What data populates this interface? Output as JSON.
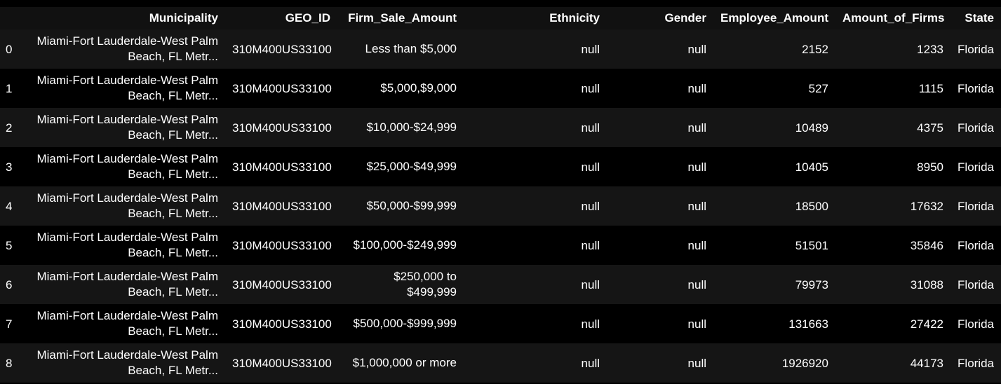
{
  "table": {
    "index_header": "",
    "columns": [
      "Municipality",
      "GEO_ID",
      "Firm_Sale_Amount",
      "Ethnicity",
      "Gender",
      "Employee_Amount",
      "Amount_of_Firms",
      "State"
    ],
    "rows": [
      {
        "index": "0",
        "municipality": "Miami-Fort Lauderdale-West Palm Beach, FL Metr...",
        "geo_id": "310M400US33100",
        "firm_sale_amount": "Less than $5,000",
        "ethnicity": "null",
        "gender": "null",
        "employee_amount": "2152",
        "amount_of_firms": "1233",
        "state": "Florida"
      },
      {
        "index": "1",
        "municipality": "Miami-Fort Lauderdale-West Palm Beach, FL Metr...",
        "geo_id": "310M400US33100",
        "firm_sale_amount": "$5,000,$9,000",
        "ethnicity": "null",
        "gender": "null",
        "employee_amount": "527",
        "amount_of_firms": "1115",
        "state": "Florida"
      },
      {
        "index": "2",
        "municipality": "Miami-Fort Lauderdale-West Palm Beach, FL Metr...",
        "geo_id": "310M400US33100",
        "firm_sale_amount": "$10,000-$24,999",
        "ethnicity": "null",
        "gender": "null",
        "employee_amount": "10489",
        "amount_of_firms": "4375",
        "state": "Florida"
      },
      {
        "index": "3",
        "municipality": "Miami-Fort Lauderdale-West Palm Beach, FL Metr...",
        "geo_id": "310M400US33100",
        "firm_sale_amount": "$25,000-$49,999",
        "ethnicity": "null",
        "gender": "null",
        "employee_amount": "10405",
        "amount_of_firms": "8950",
        "state": "Florida"
      },
      {
        "index": "4",
        "municipality": "Miami-Fort Lauderdale-West Palm Beach, FL Metr...",
        "geo_id": "310M400US33100",
        "firm_sale_amount": "$50,000-$99,999",
        "ethnicity": "null",
        "gender": "null",
        "employee_amount": "18500",
        "amount_of_firms": "17632",
        "state": "Florida"
      },
      {
        "index": "5",
        "municipality": "Miami-Fort Lauderdale-West Palm Beach, FL Metr...",
        "geo_id": "310M400US33100",
        "firm_sale_amount": "$100,000-$249,999",
        "ethnicity": "null",
        "gender": "null",
        "employee_amount": "51501",
        "amount_of_firms": "35846",
        "state": "Florida"
      },
      {
        "index": "6",
        "municipality": "Miami-Fort Lauderdale-West Palm Beach, FL Metr...",
        "geo_id": "310M400US33100",
        "firm_sale_amount": "$250,000 to $499,999",
        "ethnicity": "null",
        "gender": "null",
        "employee_amount": "79973",
        "amount_of_firms": "31088",
        "state": "Florida"
      },
      {
        "index": "7",
        "municipality": "Miami-Fort Lauderdale-West Palm Beach, FL Metr...",
        "geo_id": "310M400US33100",
        "firm_sale_amount": "$500,000-$999,999",
        "ethnicity": "null",
        "gender": "null",
        "employee_amount": "131663",
        "amount_of_firms": "27422",
        "state": "Florida"
      },
      {
        "index": "8",
        "municipality": "Miami-Fort Lauderdale-West Palm Beach, FL Metr...",
        "geo_id": "310M400US33100",
        "firm_sale_amount": "$1,000,000 or more",
        "ethnicity": "null",
        "gender": "null",
        "employee_amount": "1926920",
        "amount_of_firms": "44173",
        "state": "Florida"
      }
    ]
  },
  "colors": {
    "background": "#000000",
    "header_background": "#111111",
    "striped_row": "#151515",
    "text": "#ffffff"
  }
}
